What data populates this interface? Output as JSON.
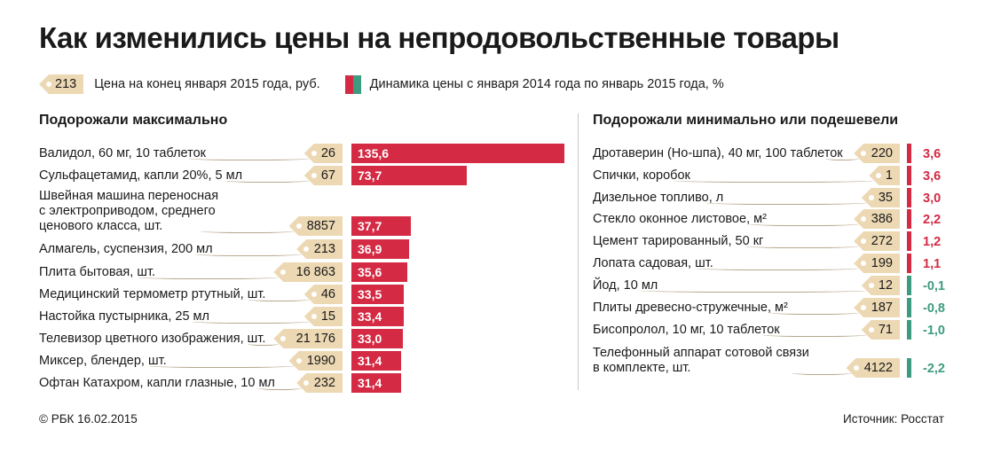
{
  "title": "Как изменились цены на непродовольственные товары",
  "legend": {
    "price_sample": "213",
    "price_label": "Цена на конец января 2015 года, руб.",
    "change_label": "Динамика цены с января 2014 года по январь 2015 года, %"
  },
  "colors": {
    "increase": "#d42a43",
    "decrease": "#3d9b7f",
    "tag": "#ecd8b3"
  },
  "chart_data": [
    {
      "type": "bar",
      "title": "Подорожали максимально",
      "items": [
        {
          "label": "Валидол, 60 мг, 10 таблеток",
          "price": "26",
          "change": 135.6,
          "change_label": "135,6"
        },
        {
          "label": "Сульфацетамид, капли 20%, 5 мл",
          "price": "67",
          "change": 73.7,
          "change_label": "73,7"
        },
        {
          "label": "Швейная машина переносная\nс электроприводом, среднего\nценового класса, шт.",
          "price": "8857",
          "change": 37.7,
          "change_label": "37,7"
        },
        {
          "label": "Алмагель, суспензия, 200 мл",
          "price": "213",
          "change": 36.9,
          "change_label": "36,9"
        },
        {
          "label": "Плита бытовая, шт.",
          "price": "16 863",
          "change": 35.6,
          "change_label": "35,6"
        },
        {
          "label": "Медицинский термометр ртутный, шт.",
          "price": "46",
          "change": 33.5,
          "change_label": "33,5"
        },
        {
          "label": "Настойка пустырника, 25 мл",
          "price": "15",
          "change": 33.4,
          "change_label": "33,4"
        },
        {
          "label": "Телевизор цветного изображения, шт.",
          "price": "21 176",
          "change": 33.0,
          "change_label": "33,0"
        },
        {
          "label": "Миксер, блендер, шт.",
          "price": "1990",
          "change": 31.4,
          "change_label": "31,4"
        },
        {
          "label": "Офтан Катахром, капли глазные, 10 мл",
          "price": "232",
          "change": 31.4,
          "change_label": "31,4"
        }
      ]
    },
    {
      "type": "bar",
      "title": "Подорожали минимально или подешевели",
      "items": [
        {
          "label": "Дротаверин (Но-шпа), 40 мг, 100 таблеток",
          "price": "220",
          "change": 3.6,
          "change_label": "3,6"
        },
        {
          "label": "Спички, коробок",
          "price": "1",
          "change": 3.6,
          "change_label": "3,6"
        },
        {
          "label": "Дизельное топливо, л",
          "price": "35",
          "change": 3.0,
          "change_label": "3,0"
        },
        {
          "label": "Стекло оконное листовое, м²",
          "price": "386",
          "change": 2.2,
          "change_label": "2,2"
        },
        {
          "label": "Цемент тарированный, 50 кг",
          "price": "272",
          "change": 1.2,
          "change_label": "1,2"
        },
        {
          "label": "Лопата садовая, шт.",
          "price": "199",
          "change": 1.1,
          "change_label": "1,1"
        },
        {
          "label": "Йод, 10 мл",
          "price": "12",
          "change": -0.1,
          "change_label": "-0,1"
        },
        {
          "label": "Плиты древесно-стружечные, м²",
          "price": "187",
          "change": -0.8,
          "change_label": "-0,8"
        },
        {
          "label": "Бисопролол, 10 мг, 10 таблеток",
          "price": "71",
          "change": -1.0,
          "change_label": "-1,0"
        },
        {
          "label": "Телефонный аппарат сотовой связи\nв комплекте, шт.",
          "price": "4122",
          "change": -2.2,
          "change_label": "-2,2"
        }
      ]
    }
  ],
  "footer": {
    "copyright": "© РБК 16.02.2015",
    "source": "Источник: Росстат"
  }
}
